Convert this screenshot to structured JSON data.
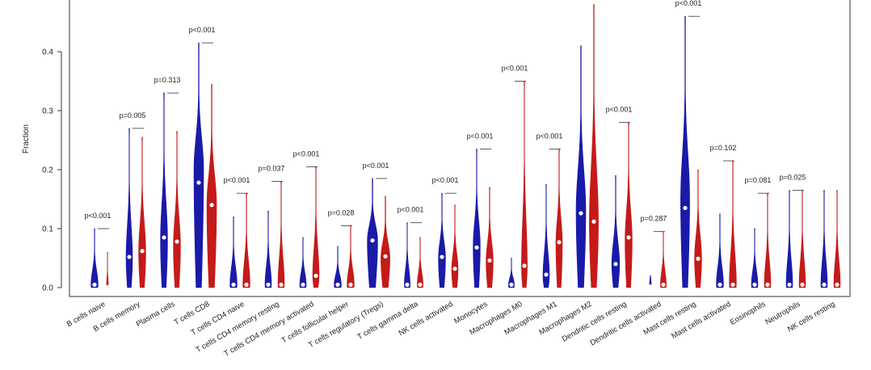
{
  "chart_data": {
    "type": "violin",
    "title": "",
    "xlabel": "",
    "ylabel": "Fraction",
    "ylim": [
      0.0,
      0.5
    ],
    "yticks": [
      "0.0",
      "0.1",
      "0.2",
      "0.3",
      "0.4"
    ],
    "colors": {
      "group1": "#1a1aa8",
      "group2": "#c41a1a",
      "median": "#ffffff",
      "axis": "#333333"
    },
    "categories": [
      "B cells naive",
      "B cells memory",
      "Plasma cells",
      "T cells CD8",
      "T cells CD4 naive",
      "T cells CD4 memory resting",
      "T cells CD4 memory activated",
      "T cells follicular helper",
      "T cells regulatory (Tregs)",
      "T cells gamma delta",
      "NK cells activated",
      "Monocytes",
      "Macrophages M0",
      "Macrophages M1",
      "Macrophages M2",
      "Dendritic cells resting",
      "Dendritic cells activated",
      "Mast cells resting",
      "Mast cells activated",
      "Eosinophils",
      "Neutrophils",
      "NK cells resting"
    ],
    "p_values": [
      "p<0.001",
      "p=0.005",
      "p=0.313",
      "p<0.001",
      "p<0.001",
      "p=0.037",
      "p<0.001",
      "p=0.028",
      "p<0.001",
      "p<0.001",
      "p<0.001",
      "p<0.001",
      "p<0.001",
      "p<0.001",
      "",
      "p<0.001",
      "p=0.287",
      "p<0.001",
      "p=0.102",
      "p=0.081",
      "p=0.025",
      ""
    ],
    "series": [
      {
        "name": "",
        "max": [
          0.1,
          0.27,
          0.33,
          0.415,
          0.12,
          0.13,
          0.085,
          0.07,
          0.185,
          0.11,
          0.16,
          0.235,
          0.05,
          0.175,
          0.41,
          0.19,
          0.02,
          0.46,
          0.125,
          0.1,
          0.165,
          0.165
        ],
        "median": [
          0.005,
          0.052,
          0.085,
          0.178,
          0.005,
          0.005,
          0.005,
          0.005,
          0.08,
          0.005,
          0.052,
          0.068,
          0.005,
          0.022,
          0.126,
          0.04,
          0.002,
          0.135,
          0.005,
          0.005,
          0.005,
          0.005
        ],
        "peak": [
          0.005,
          0.05,
          0.08,
          0.2,
          0.005,
          0.005,
          0.005,
          0.005,
          0.08,
          0.005,
          0.05,
          0.07,
          0.005,
          0.02,
          0.13,
          0.04,
          0.002,
          0.15,
          0.005,
          0.005,
          0.005,
          0.005
        ],
        "width": [
          0.55,
          0.5,
          0.55,
          0.75,
          0.55,
          0.5,
          0.5,
          0.55,
          0.8,
          0.45,
          0.55,
          0.55,
          0.45,
          0.5,
          0.75,
          0.6,
          0.15,
          0.7,
          0.55,
          0.5,
          0.5,
          0.5
        ]
      },
      {
        "name": "",
        "max": [
          0.06,
          0.255,
          0.265,
          0.345,
          0.16,
          0.18,
          0.205,
          0.105,
          0.155,
          0.085,
          0.14,
          0.17,
          0.35,
          0.235,
          0.48,
          0.28,
          0.095,
          0.2,
          0.215,
          0.16,
          0.165,
          0.165
        ],
        "median": [
          0.001,
          0.062,
          0.078,
          0.14,
          0.005,
          0.005,
          0.02,
          0.005,
          0.053,
          0.005,
          0.032,
          0.046,
          0.037,
          0.077,
          0.112,
          0.085,
          0.005,
          0.049,
          0.005,
          0.005,
          0.005,
          0.005
        ],
        "peak": [
          0.001,
          0.06,
          0.07,
          0.14,
          0.005,
          0.005,
          0.02,
          0.005,
          0.05,
          0.005,
          0.03,
          0.045,
          0.035,
          0.075,
          0.11,
          0.08,
          0.005,
          0.05,
          0.005,
          0.005,
          0.005,
          0.005
        ],
        "width": [
          0.1,
          0.55,
          0.55,
          0.75,
          0.55,
          0.5,
          0.5,
          0.55,
          0.7,
          0.45,
          0.5,
          0.55,
          0.45,
          0.5,
          0.7,
          0.55,
          0.45,
          0.55,
          0.55,
          0.5,
          0.5,
          0.5
        ]
      }
    ]
  }
}
